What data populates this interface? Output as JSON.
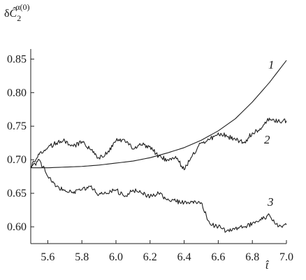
{
  "chart_data": {
    "type": "line",
    "title": "",
    "ylabel_parts": {
      "delta": "δ",
      "symbol": "Ĉ",
      "subscript": "2",
      "superscript": "α(0)"
    },
    "xlabel": "t̂",
    "xlim": [
      5.5,
      7.0
    ],
    "ylim": [
      0.575,
      0.865
    ],
    "xticks": [
      5.6,
      5.8,
      6.0,
      6.2,
      6.4,
      6.6,
      6.8,
      7.0
    ],
    "xtick_labels": [
      "5.6",
      "5.8",
      "6.0",
      "6.2",
      "6.4",
      "6.6",
      "6.8",
      "7.0"
    ],
    "yticks": [
      0.6,
      0.65,
      0.7,
      0.75,
      0.8,
      0.85
    ],
    "ytick_labels": [
      "0.60",
      "0.65",
      "0.70",
      "0.75",
      "0.80",
      "0.85"
    ],
    "grid": false,
    "series": [
      {
        "label": "1",
        "x": [
          5.5,
          5.6,
          5.7,
          5.8,
          5.9,
          6.0,
          6.1,
          6.2,
          6.3,
          6.4,
          6.5,
          6.6,
          6.7,
          6.8,
          6.9,
          7.0
        ],
        "y": [
          0.688,
          0.688,
          0.689,
          0.69,
          0.692,
          0.695,
          0.698,
          0.703,
          0.71,
          0.718,
          0.729,
          0.743,
          0.761,
          0.786,
          0.815,
          0.848
        ]
      },
      {
        "label": "2",
        "x": [
          5.5,
          5.55,
          5.6,
          5.65,
          5.7,
          5.75,
          5.8,
          5.85,
          5.9,
          5.95,
          6.0,
          6.05,
          6.1,
          6.15,
          6.2,
          6.25,
          6.3,
          6.35,
          6.4,
          6.45,
          6.5,
          6.55,
          6.6,
          6.65,
          6.7,
          6.75,
          6.8,
          6.85,
          6.9,
          6.95,
          7.0
        ],
        "y": [
          0.69,
          0.708,
          0.718,
          0.725,
          0.728,
          0.72,
          0.727,
          0.715,
          0.703,
          0.71,
          0.728,
          0.73,
          0.716,
          0.722,
          0.72,
          0.705,
          0.7,
          0.705,
          0.685,
          0.708,
          0.725,
          0.73,
          0.74,
          0.735,
          0.73,
          0.725,
          0.74,
          0.745,
          0.762,
          0.757,
          0.758
        ]
      },
      {
        "label": "3",
        "x": [
          5.5,
          5.55,
          5.6,
          5.65,
          5.7,
          5.75,
          5.8,
          5.85,
          5.9,
          5.95,
          6.0,
          6.05,
          6.1,
          6.15,
          6.2,
          6.25,
          6.3,
          6.35,
          6.4,
          6.45,
          6.5,
          6.55,
          6.6,
          6.65,
          6.7,
          6.75,
          6.8,
          6.85,
          6.9,
          6.95,
          7.0
        ],
        "y": [
          0.688,
          0.7,
          0.675,
          0.66,
          0.655,
          0.65,
          0.655,
          0.66,
          0.648,
          0.65,
          0.655,
          0.645,
          0.655,
          0.65,
          0.645,
          0.65,
          0.64,
          0.638,
          0.636,
          0.638,
          0.636,
          0.605,
          0.6,
          0.594,
          0.598,
          0.6,
          0.605,
          0.61,
          0.618,
          0.6,
          0.603
        ]
      }
    ]
  }
}
